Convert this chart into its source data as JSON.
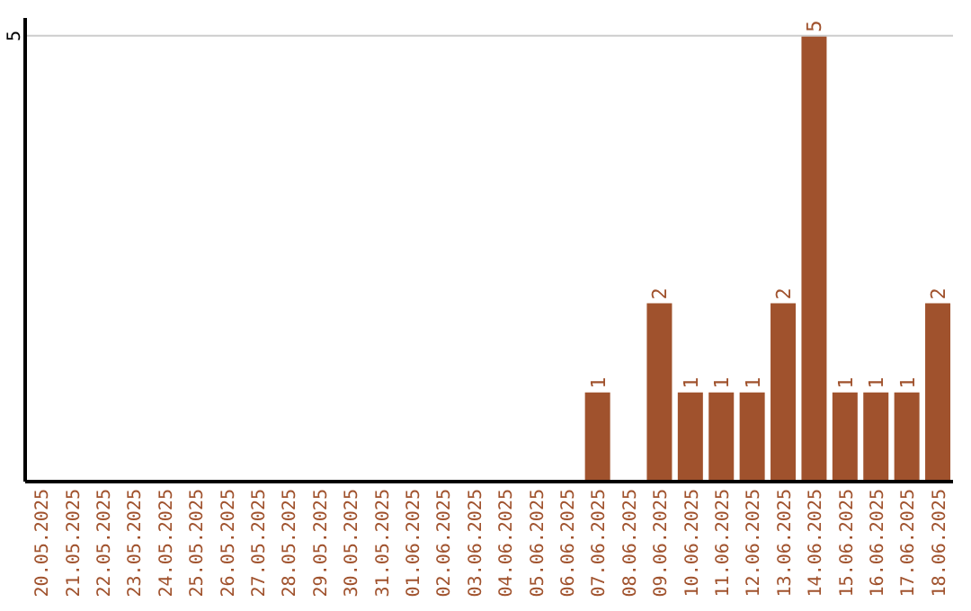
{
  "chart_data": {
    "type": "bar",
    "categories": [
      "20.05.2025",
      "21.05.2025",
      "22.05.2025",
      "23.05.2025",
      "24.05.2025",
      "25.05.2025",
      "26.05.2025",
      "27.05.2025",
      "28.05.2025",
      "29.05.2025",
      "30.05.2025",
      "31.05.2025",
      "01.06.2025",
      "02.06.2025",
      "03.06.2025",
      "04.06.2025",
      "05.06.2025",
      "06.06.2025",
      "07.06.2025",
      "08.06.2025",
      "09.06.2025",
      "10.06.2025",
      "11.06.2025",
      "12.06.2025",
      "13.06.2025",
      "14.06.2025",
      "15.06.2025",
      "16.06.2025",
      "17.06.2025",
      "18.06.2025"
    ],
    "values": [
      null,
      null,
      null,
      null,
      null,
      null,
      null,
      null,
      null,
      null,
      null,
      null,
      null,
      null,
      null,
      null,
      null,
      null,
      1,
      null,
      2,
      1,
      1,
      1,
      2,
      5,
      1,
      1,
      1,
      2
    ],
    "data_labels": true,
    "color": "#a0522d",
    "ylim": [
      0,
      5.2
    ],
    "yticks": [
      5
    ],
    "grid": "y"
  }
}
